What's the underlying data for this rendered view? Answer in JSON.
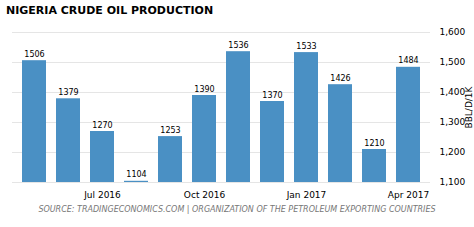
{
  "chart_data": {
    "type": "bar",
    "title": "NIGERIA CRUDE OIL PRODUCTION",
    "annotations": [
      "SOURCE: TRADINGECONOMICS.COM | ORGANIZATION OF THE PETROLEUM EXPORTING COUNTRIES"
    ],
    "ylabel": "BBL/D/1K",
    "categories": [
      null,
      null,
      "Jul 2016",
      null,
      null,
      "Oct 2016",
      null,
      null,
      "Jan 2017",
      null,
      null,
      "Apr 2017"
    ],
    "values": [
      1506,
      1379,
      1270,
      1104,
      1253,
      1390,
      1536,
      1370,
      1533,
      1426,
      1210,
      1484
    ],
    "color": "#4a90c4",
    "ylim": [
      1100,
      1600
    ],
    "yticks": [
      1100,
      1200,
      1300,
      1400,
      1500,
      1600
    ],
    "grid": true,
    "data_labels": true
  }
}
